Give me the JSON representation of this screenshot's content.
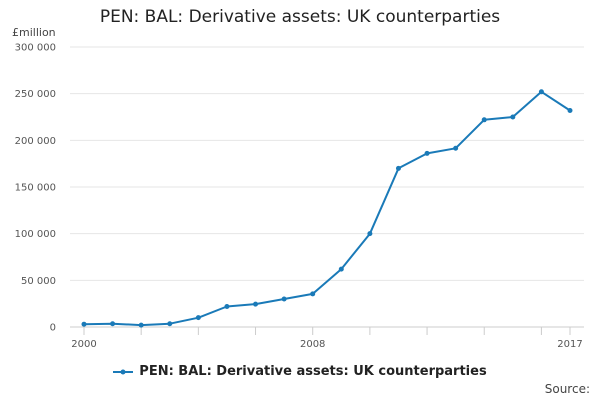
{
  "chart_data": {
    "type": "line",
    "title": "PEN: BAL: Derivative assets: UK counterparties",
    "ylabel": "£million",
    "x_tick_labels": [
      "2000",
      "2008",
      "2017"
    ],
    "y_tick_labels": [
      "0",
      "50 000",
      "100 000",
      "150 000",
      "200 000",
      "250 000",
      "300 000"
    ],
    "y_ticks": [
      0,
      50000,
      100000,
      150000,
      200000,
      250000,
      300000
    ],
    "ylim": [
      0,
      300000
    ],
    "xlim": [
      2000,
      2017
    ],
    "x": [
      2000,
      2001,
      2002,
      2003,
      2004,
      2005,
      2006,
      2007,
      2008,
      2009,
      2010,
      2011,
      2012,
      2013,
      2014,
      2015,
      2016,
      2017
    ],
    "series": [
      {
        "name": "PEN: BAL: Derivative assets: UK counterparties",
        "color": "#1a7ab8",
        "values": [
          3000,
          3500,
          2000,
          3500,
          10000,
          22000,
          24500,
          30000,
          35500,
          62000,
          100000,
          170000,
          186000,
          191500,
          222000,
          225000,
          252000,
          232000
        ]
      }
    ],
    "grid": true,
    "legend_position": "bottom"
  },
  "footer": {
    "source": "Source:"
  }
}
